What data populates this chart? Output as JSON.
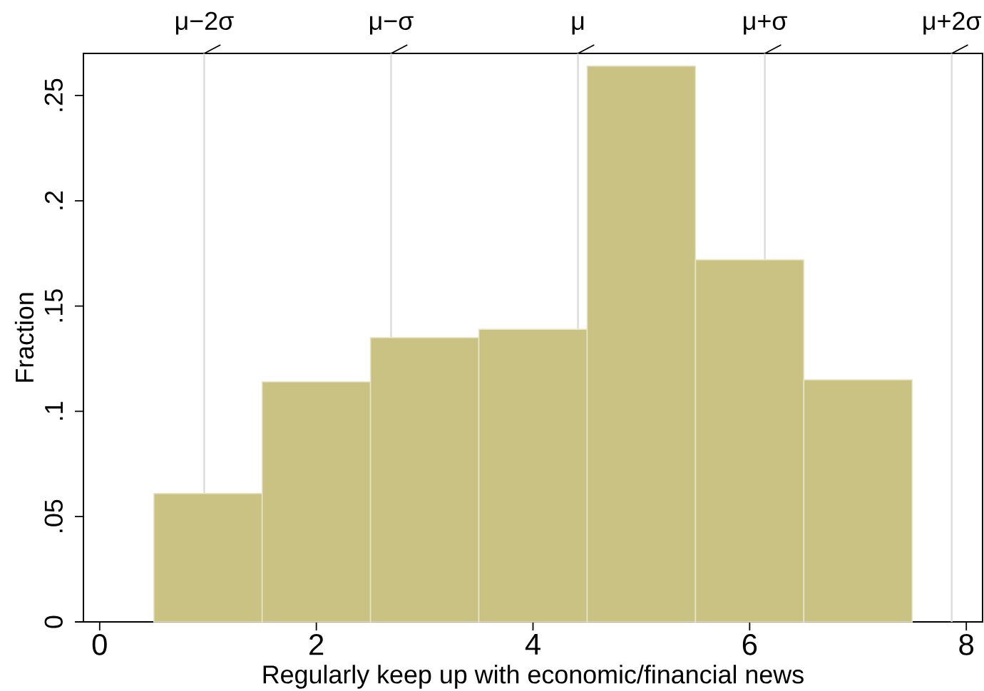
{
  "chart_data": {
    "type": "histogram",
    "xlabel": "Regularly keep up with economic/financial news",
    "ylabel": "Fraction",
    "bins": [
      0.5,
      1.5,
      2.5,
      3.5,
      4.5,
      5.5,
      6.5,
      7.5
    ],
    "values": [
      0.061,
      0.114,
      0.135,
      0.139,
      0.264,
      0.172,
      0.115
    ],
    "color": "#cac283",
    "xlim": [
      -0.15,
      8.15
    ],
    "xticks": [
      0,
      2,
      4,
      6,
      8
    ],
    "ylim": [
      0,
      0.27
    ],
    "yticks": [
      0,
      {
        "value": 0.05,
        "label": ".05"
      },
      {
        "value": 0.1,
        "label": ".1"
      },
      {
        "value": 0.15,
        "label": ".15"
      },
      {
        "value": 0.2,
        "label": ".2"
      },
      {
        "value": 0.25,
        "label": ".25"
      }
    ],
    "ref_lines": [
      {
        "axis": "x",
        "value": 0.965,
        "label": "μ−2σ",
        "color": "#dcdcdc"
      },
      {
        "axis": "x",
        "value": 2.69,
        "label": "μ−σ",
        "color": "#dcdcdc"
      },
      {
        "axis": "x",
        "value": 4.415,
        "label": "μ",
        "color": "#dcdcdc"
      },
      {
        "axis": "x",
        "value": 6.14,
        "label": "μ+σ",
        "color": "#dcdcdc"
      },
      {
        "axis": "x",
        "value": 7.865,
        "label": "μ+2σ",
        "color": "#dcdcdc"
      }
    ]
  }
}
